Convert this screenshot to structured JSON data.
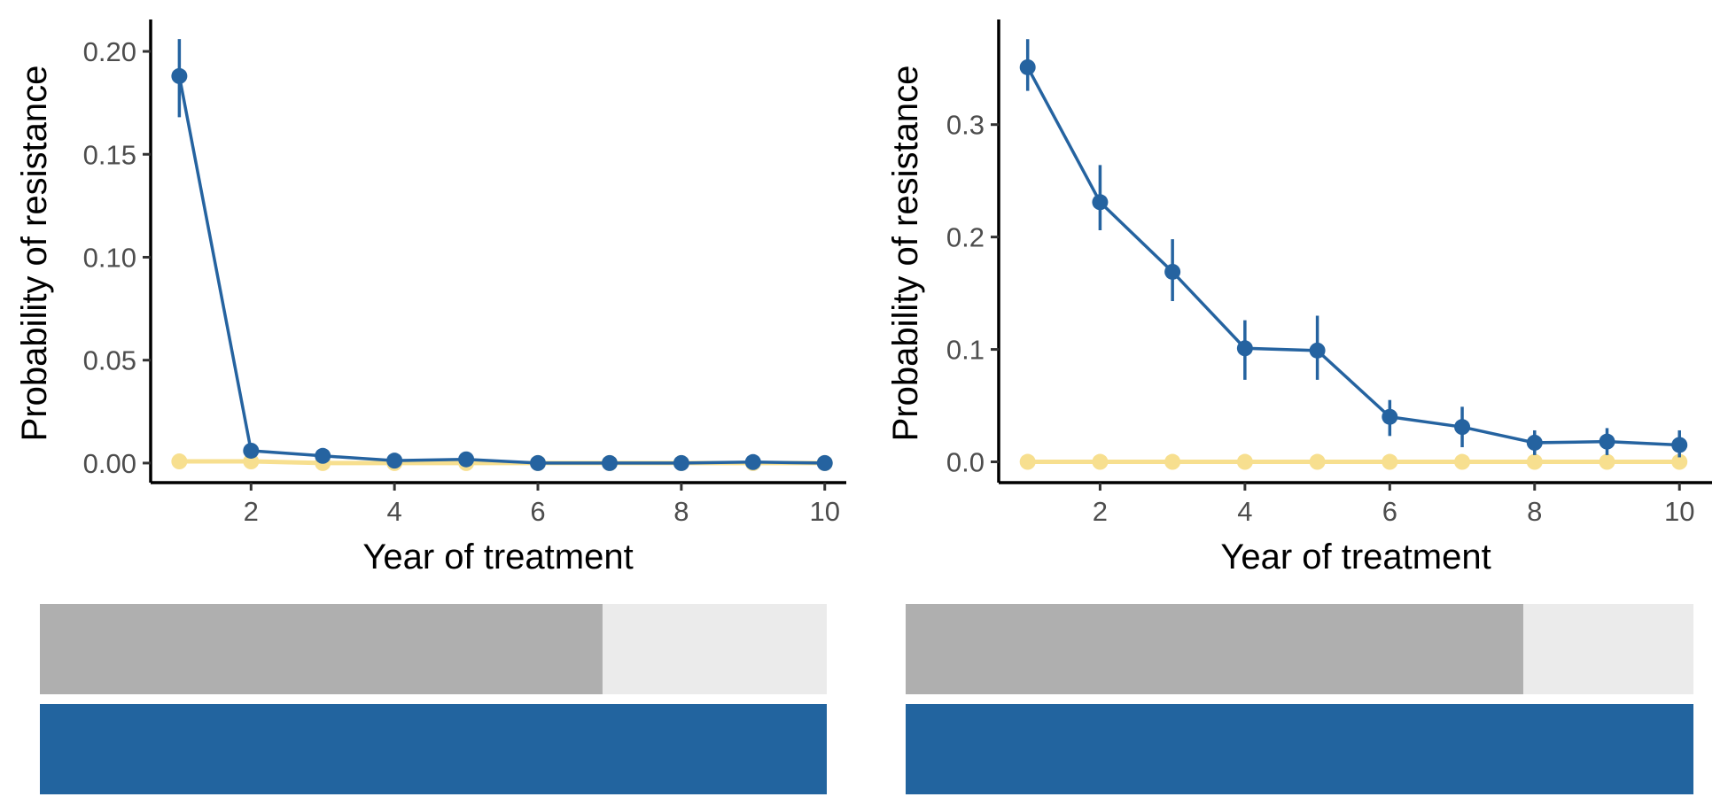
{
  "colors": {
    "series_a": "#2563A0",
    "series_b": "#F7DF8F",
    "bar_dark": "#AFAFAF",
    "bar_light": "#EBEBEB",
    "bar_blue": "#22649F",
    "axis": "#000000",
    "tick_text": "#4D4D4D"
  },
  "chart_data": [
    {
      "type": "line",
      "xlabel": "Year of treatment",
      "ylabel": "Probability of resistance",
      "xlim": [
        0.6,
        10.3
      ],
      "ylim": [
        -0.0095,
        0.2155
      ],
      "x_ticks": [
        2,
        4,
        6,
        8,
        10
      ],
      "y_ticks": [
        0.0,
        0.05,
        0.1,
        0.15,
        0.2
      ],
      "y_tick_labels": [
        "0.00",
        "0.05",
        "0.10",
        "0.15",
        "0.20"
      ],
      "x": [
        1,
        2,
        3,
        4,
        5,
        6,
        7,
        8,
        9,
        10
      ],
      "series": [
        {
          "values": [
            0.188,
            0.006,
            0.0035,
            0.0012,
            0.0018,
            0.0,
            0.0,
            0.0,
            0.0005,
            0.0
          ],
          "err_low": [
            0.168,
            0.004,
            0.002,
            0.0,
            0.0,
            0.0,
            0.0,
            0.0,
            0.0,
            0.0
          ],
          "err_high": [
            0.206,
            0.008,
            0.005,
            0.003,
            0.004,
            0.001,
            0.001,
            0.001,
            0.002,
            0.001
          ]
        },
        {
          "values": [
            0.0008,
            0.0008,
            0.0,
            0.0,
            0.0,
            0.0,
            0.0,
            0.0,
            0.0,
            0.0
          ],
          "err_low": [
            0.0,
            0.0,
            0.0,
            0.0,
            0.0,
            0.0,
            0.0,
            0.0,
            0.0,
            0.0
          ],
          "err_high": [
            0.0015,
            0.0015,
            0.0005,
            0.0005,
            0.0005,
            0.0005,
            0.0005,
            0.0005,
            0.0005,
            0.0005
          ]
        }
      ],
      "bars": [
        0.715,
        1.0
      ]
    },
    {
      "type": "line",
      "xlabel": "Year of treatment",
      "ylabel": "Probability of resistance",
      "xlim": [
        0.6,
        10.45
      ],
      "ylim": [
        -0.0185,
        0.3935
      ],
      "x_ticks": [
        2,
        4,
        6,
        8,
        10
      ],
      "y_ticks": [
        0.0,
        0.1,
        0.2,
        0.3
      ],
      "y_tick_labels": [
        "0.0",
        "0.1",
        "0.2",
        "0.3"
      ],
      "x": [
        1,
        2,
        3,
        4,
        5,
        6,
        7,
        8,
        9,
        10
      ],
      "series": [
        {
          "values": [
            0.351,
            0.231,
            0.169,
            0.101,
            0.099,
            0.04,
            0.031,
            0.017,
            0.018,
            0.015
          ],
          "err_low": [
            0.33,
            0.206,
            0.143,
            0.073,
            0.073,
            0.023,
            0.013,
            0.006,
            0.006,
            0.004
          ],
          "err_high": [
            0.376,
            0.264,
            0.198,
            0.126,
            0.13,
            0.055,
            0.049,
            0.028,
            0.03,
            0.028
          ]
        },
        {
          "values": [
            0.0,
            0.0,
            0.0,
            0.0,
            0.0,
            0.0,
            0.0,
            0.0,
            0.0,
            0.0
          ],
          "err_low": [
            0.0,
            0.0,
            0.0,
            0.0,
            0.0,
            0.0,
            0.0,
            0.0,
            0.0,
            0.0
          ],
          "err_high": [
            0.0,
            0.0,
            0.0,
            0.0,
            0.0,
            0.0,
            0.0,
            0.0,
            0.0,
            0.0
          ]
        }
      ],
      "bars": [
        0.784,
        1.0
      ]
    }
  ]
}
